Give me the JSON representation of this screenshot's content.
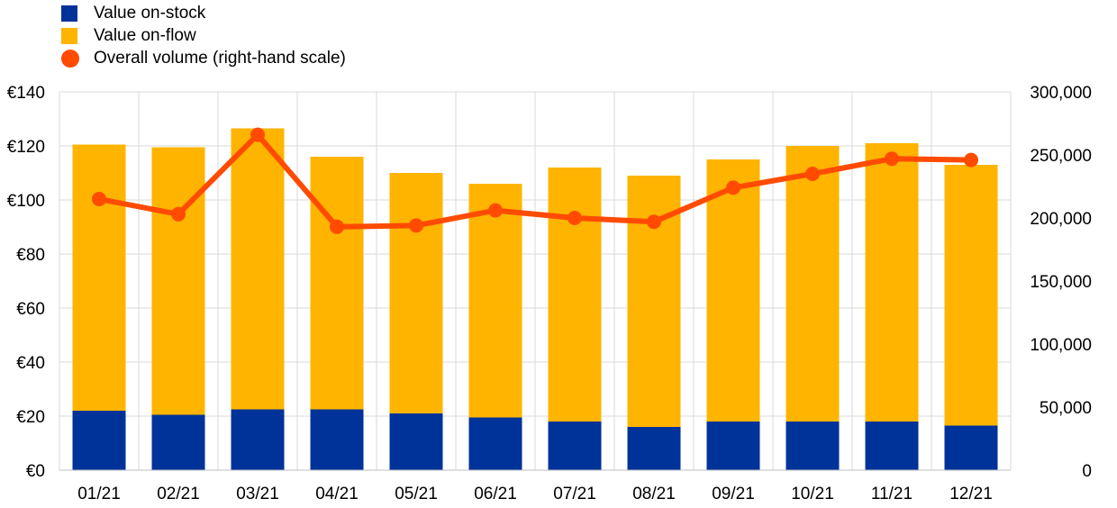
{
  "chart_data": {
    "type": "bar",
    "stacked": true,
    "categories": [
      "01/21",
      "02/21",
      "03/21",
      "04/21",
      "05/21",
      "06/21",
      "07/21",
      "08/21",
      "09/21",
      "10/21",
      "11/21",
      "12/21"
    ],
    "series": [
      {
        "name": "Value on-stock",
        "type": "bar",
        "axis": "left",
        "color": "#003399",
        "values": [
          22,
          20.5,
          22.5,
          22.5,
          21,
          19.5,
          18,
          16,
          18,
          18,
          18,
          16.5
        ]
      },
      {
        "name": "Value on-flow",
        "type": "bar",
        "axis": "left",
        "color": "#FFB400",
        "values": [
          98.5,
          99,
          104,
          93.5,
          89,
          86.5,
          94,
          93,
          97,
          102,
          103,
          96.5
        ]
      },
      {
        "name": "Overall volume (right-hand scale)",
        "type": "line",
        "axis": "right",
        "color": "#FF4B00",
        "values": [
          215000,
          203000,
          266000,
          193000,
          194000,
          206000,
          200000,
          197000,
          224000,
          235000,
          247000,
          246000
        ]
      }
    ],
    "y_left": {
      "min": 0,
      "max": 140,
      "step": 20,
      "tick_labels": [
        "€0",
        "€20",
        "€40",
        "€60",
        "€80",
        "€100",
        "€120",
        "€140"
      ]
    },
    "y_right": {
      "min": 0,
      "max": 300000,
      "step": 50000,
      "tick_labels": [
        "0",
        "50,000",
        "100,000",
        "150,000",
        "200,000",
        "250,000",
        "300,000"
      ]
    },
    "grid": true,
    "legend": "top-left",
    "title": "",
    "xlabel": "",
    "ylabel": ""
  }
}
